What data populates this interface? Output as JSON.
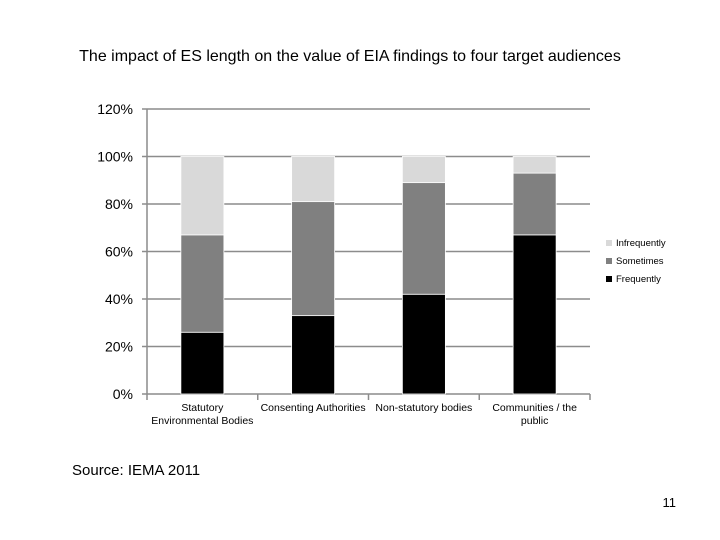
{
  "slide": {
    "title": "The impact of ES length on the value of EIA findings to four target audiences",
    "source": "Source: IEMA 2011",
    "page_number": "11"
  },
  "chart_data": {
    "type": "bar",
    "stacked": true,
    "title": "",
    "xlabel": "",
    "ylabel": "",
    "ylim": [
      0,
      120
    ],
    "yticks": [
      "0%",
      "20%",
      "40%",
      "60%",
      "80%",
      "100%",
      "120%"
    ],
    "grid": true,
    "legend_position": "right",
    "categories": [
      [
        "Statutory",
        "Environmental Bodies"
      ],
      [
        "Consenting Authorities"
      ],
      [
        "Non-statutory bodies"
      ],
      [
        "Communities / the",
        "public"
      ]
    ],
    "series": [
      {
        "name": "Frequently",
        "color": "#000000",
        "values": [
          26,
          33,
          42,
          67
        ]
      },
      {
        "name": "Sometimes",
        "color": "#808080",
        "values": [
          41,
          48,
          47,
          26
        ]
      },
      {
        "name": "Infrequently",
        "color": "#d9d9d9",
        "values": [
          33,
          19,
          11,
          7
        ]
      }
    ],
    "legend_order": [
      "Infrequently",
      "Sometimes",
      "Frequently"
    ]
  }
}
